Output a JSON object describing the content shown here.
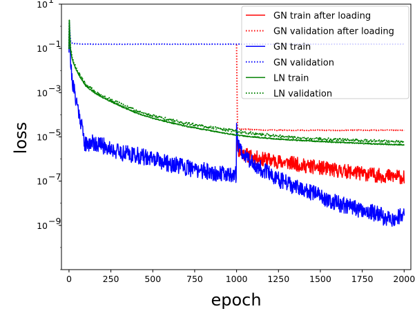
{
  "chart_data": {
    "type": "line",
    "title": "",
    "xlabel": "epoch",
    "ylabel": "loss",
    "xlim": [
      -45,
      2040
    ],
    "ylim": [
      1e-11,
      10
    ],
    "yscale": "log",
    "grid": false,
    "legend_position": "top-right",
    "xticks": [
      0,
      250,
      500,
      750,
      1000,
      1250,
      1500,
      1750,
      2000
    ],
    "xtick_labels": [
      "0",
      "250",
      "500",
      "750",
      "1000",
      "1250",
      "1500",
      "1750",
      "2000"
    ],
    "yticks": [
      1e-09,
      1e-07,
      1e-05,
      0.001,
      0.1,
      10
    ],
    "ytick_labels": [
      {
        "base": "10",
        "exp": "−9"
      },
      {
        "base": "10",
        "exp": "−7"
      },
      {
        "base": "10",
        "exp": "−5"
      },
      {
        "base": "10",
        "exp": "−3"
      },
      {
        "base": "10",
        "exp": "−1"
      },
      {
        "base": "10",
        "exp": "1"
      }
    ],
    "series": [
      {
        "name": "GN train after loading",
        "color": "#ff0000",
        "style": "solid",
        "x": [
          1000,
          1005,
          1010,
          1050,
          1100,
          1150,
          1200,
          1250,
          1300,
          1350,
          1400,
          1450,
          1500,
          1550,
          1600,
          1650,
          1700,
          1750,
          1800,
          1850,
          1900,
          1950,
          2000
        ],
        "y": [
          3.5e-05,
          5e-06,
          2.5e-06,
          1.6e-06,
          1.2e-06,
          1e-06,
          9e-07,
          7.5e-07,
          7e-07,
          6e-07,
          5e-07,
          4.5e-07,
          4e-07,
          3.5e-07,
          3e-07,
          2.8e-07,
          2.5e-07,
          2.2e-07,
          2e-07,
          1.8e-07,
          1.7e-07,
          1.6e-07,
          1.5e-07
        ],
        "noise": 0.65,
        "seed": 11
      },
      {
        "name": "GN validation after loading",
        "color": "#ff0000",
        "style": "dotted",
        "x": [
          1000,
          1005,
          1020,
          1100,
          1200,
          1300,
          1400,
          1500,
          1600,
          1700,
          1800,
          1900,
          2000
        ],
        "y": [
          0.15,
          2.5e-05,
          2.3e-05,
          2.1e-05,
          2e-05,
          2e-05,
          2e-05,
          2e-05,
          2e-05,
          2e-05,
          2e-05,
          2e-05,
          2e-05
        ],
        "noise": 0.03,
        "seed": 12
      },
      {
        "name": "GN train",
        "color": "#0000ff",
        "style": "solid",
        "x": [
          0,
          2,
          5,
          10,
          20,
          40,
          60,
          80,
          90,
          100,
          130,
          160,
          200,
          250,
          300,
          350,
          400,
          450,
          500,
          550,
          600,
          650,
          700,
          750,
          800,
          850,
          900,
          950,
          990,
          998,
          1000,
          1005,
          1010,
          1050,
          1100,
          1150,
          1200,
          1250,
          1300,
          1350,
          1400,
          1450,
          1500,
          1550,
          1600,
          1650,
          1700,
          1750,
          1800,
          1850,
          1900,
          1950,
          2000
        ],
        "y": [
          0.1,
          3,
          0.5,
          0.02,
          0.003,
          0.0006,
          0.00012,
          2.5e-05,
          7e-06,
          4e-06,
          6e-06,
          5e-06,
          4e-06,
          3e-06,
          2e-06,
          1.8e-06,
          1.5e-06,
          1.2e-06,
          1e-06,
          8e-07,
          6e-07,
          5e-07,
          4e-07,
          3.5e-07,
          3e-07,
          2.5e-07,
          2.2e-07,
          2e-07,
          2e-07,
          2e-07,
          4e-05,
          1.2e-05,
          4e-06,
          1.5e-06,
          6e-07,
          3.5e-07,
          2e-07,
          1.2e-07,
          8e-08,
          5e-08,
          4e-08,
          3e-08,
          2e-08,
          1.5e-08,
          1e-08,
          8e-09,
          6e-09,
          5e-09,
          4e-09,
          3e-09,
          2e-09,
          2e-09,
          3e-09
        ],
        "noise": 0.75,
        "seed": 21
      },
      {
        "name": "GN validation",
        "color": "#0000ff",
        "style": "dotted",
        "x": [
          0,
          2,
          5,
          10,
          20,
          40,
          100,
          500,
          1000,
          1500,
          2000
        ],
        "y": [
          0.1,
          1.5,
          0.5,
          0.2,
          0.17,
          0.16,
          0.155,
          0.155,
          0.155,
          0.155,
          0.155
        ],
        "noise": 0.01,
        "seed": 22
      },
      {
        "name": "LN train",
        "color": "#008000",
        "style": "solid",
        "x": [
          0,
          2,
          5,
          10,
          20,
          40,
          60,
          100,
          150,
          200,
          250,
          300,
          350,
          400,
          500,
          600,
          700,
          800,
          900,
          1000,
          1100,
          1200,
          1300,
          1400,
          1500,
          1600,
          1700,
          1800,
          1900,
          2000
        ],
        "y": [
          0.1,
          2,
          0.3,
          0.08,
          0.03,
          0.012,
          0.006,
          0.002,
          0.001,
          0.0006,
          0.0004,
          0.00026,
          0.00018,
          0.00012,
          7e-05,
          4.5e-05,
          3e-05,
          2.2e-05,
          1.6e-05,
          1.2e-05,
          1e-05,
          8.5e-06,
          7.5e-06,
          6.8e-06,
          6.2e-06,
          5.7e-06,
          5.3e-06,
          4.9e-06,
          4.6e-06,
          4.4e-06
        ],
        "noise": 0.05,
        "seed": 31
      },
      {
        "name": "LN validation",
        "color": "#008000",
        "style": "dotted",
        "x": [
          0,
          2,
          5,
          10,
          20,
          40,
          60,
          100,
          150,
          200,
          250,
          300,
          350,
          400,
          500,
          600,
          700,
          800,
          900,
          1000,
          1100,
          1200,
          1300,
          1400,
          1500,
          1600,
          1700,
          1800,
          1900,
          2000
        ],
        "y": [
          0.1,
          2,
          0.3,
          0.09,
          0.035,
          0.014,
          0.007,
          0.0024,
          0.0012,
          0.0007,
          0.00048,
          0.00032,
          0.00022,
          0.00015,
          9e-05,
          6e-05,
          4e-05,
          3e-05,
          2.3e-05,
          1.8e-05,
          1.4e-05,
          1.2e-05,
          1e-05,
          9e-06,
          8e-06,
          7.5e-06,
          7e-06,
          6.6e-06,
          6.3e-06,
          6e-06
        ],
        "noise": 0.12,
        "seed": 32
      }
    ]
  }
}
